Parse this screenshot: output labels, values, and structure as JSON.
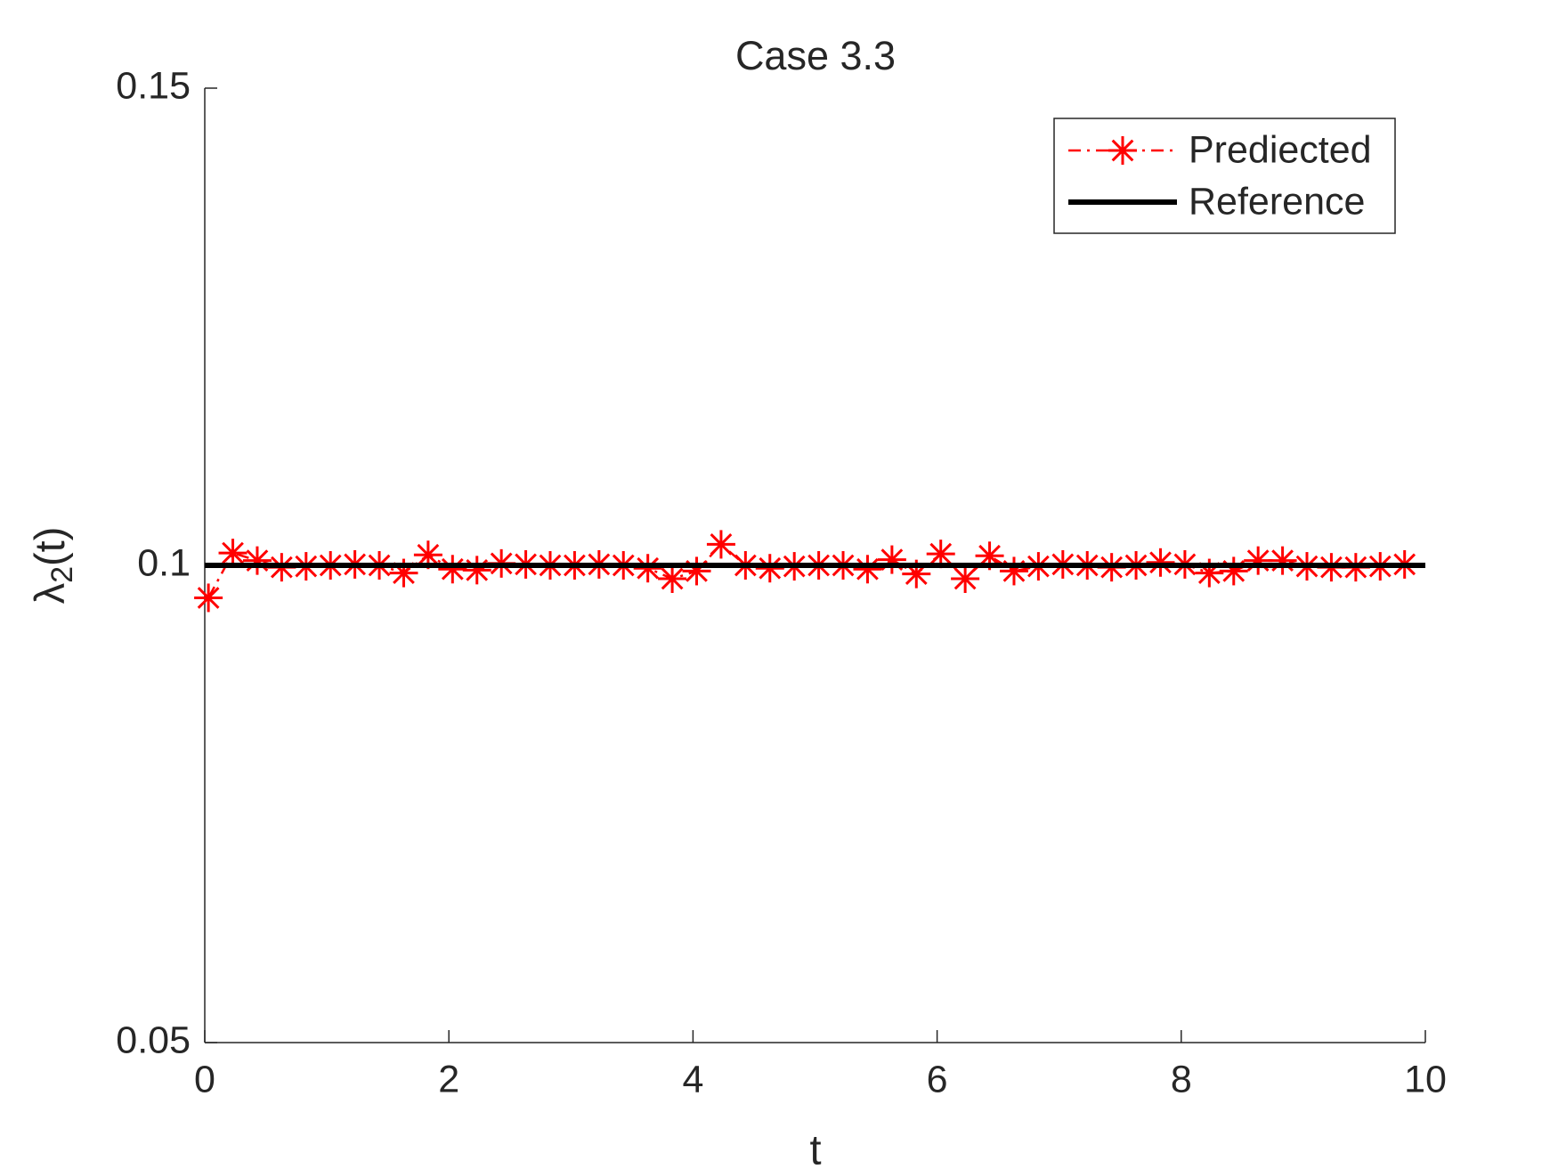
{
  "chart_data": {
    "type": "line",
    "title": "Case 3.3",
    "xlabel": "t",
    "ylabel": [
      "λ",
      "2",
      "(t)"
    ],
    "xlim": [
      0,
      10
    ],
    "xticks": [
      0,
      2,
      4,
      6,
      8,
      10
    ],
    "ylim": [
      0.05,
      0.15
    ],
    "yticks": [
      0.05,
      0.1,
      0.15
    ],
    "grid": false,
    "legend": "upper right",
    "series": [
      {
        "name": "Prediected",
        "color": "#ff0000",
        "linestyle": "dashdot",
        "marker": "asterisk",
        "x": [
          0.03,
          0.23,
          0.43,
          0.63,
          0.83,
          1.03,
          1.23,
          1.43,
          1.63,
          1.83,
          2.03,
          2.23,
          2.43,
          2.63,
          2.83,
          3.03,
          3.23,
          3.43,
          3.63,
          3.83,
          4.03,
          4.23,
          4.43,
          4.63,
          4.83,
          5.03,
          5.23,
          5.43,
          5.63,
          5.83,
          6.03,
          6.23,
          6.43,
          6.63,
          6.83,
          7.03,
          7.23,
          7.43,
          7.63,
          7.83,
          8.03,
          8.23,
          8.43,
          8.63,
          8.83,
          9.03,
          9.23,
          9.43,
          9.63,
          9.83
        ],
        "values": [
          0.0966,
          0.1013,
          0.1005,
          0.0998,
          0.0999,
          0.1,
          0.1001,
          0.1,
          0.0992,
          0.1011,
          0.0996,
          0.0995,
          0.1002,
          0.1001,
          0.1,
          0.1,
          0.1001,
          0.1,
          0.0997,
          0.0986,
          0.0994,
          0.1022,
          0.1,
          0.0997,
          0.0999,
          0.1,
          0.1,
          0.0996,
          0.1006,
          0.0991,
          0.1012,
          0.0986,
          0.101,
          0.0994,
          0.0999,
          0.1001,
          0.1,
          0.0998,
          0.1,
          0.1003,
          0.1001,
          0.0992,
          0.0994,
          0.1005,
          0.1005,
          0.0999,
          0.0998,
          0.0998,
          0.0999,
          0.1001
        ]
      },
      {
        "name": "Reference",
        "color": "#000000",
        "linestyle": "solid",
        "marker": "none",
        "x": [
          0,
          10
        ],
        "values": [
          0.1,
          0.1
        ]
      }
    ]
  }
}
